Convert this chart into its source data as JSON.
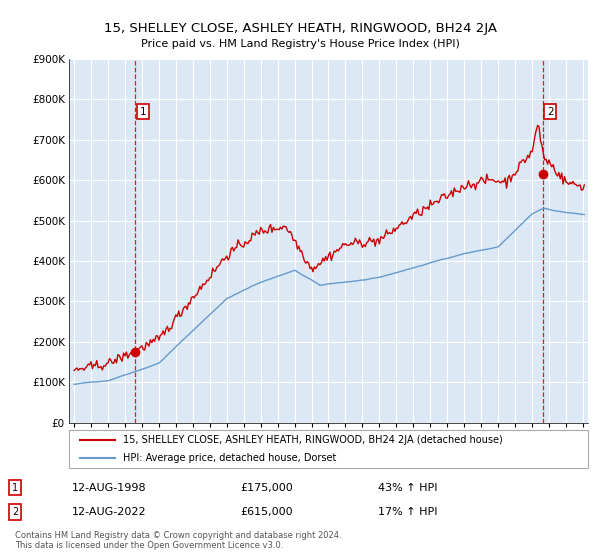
{
  "title": "15, SHELLEY CLOSE, ASHLEY HEATH, RINGWOOD, BH24 2JA",
  "subtitle": "Price paid vs. HM Land Registry's House Price Index (HPI)",
  "legend_line1": "15, SHELLEY CLOSE, ASHLEY HEATH, RINGWOOD, BH24 2JA (detached house)",
  "legend_line2": "HPI: Average price, detached house, Dorset",
  "annotation1_date": "12-AUG-1998",
  "annotation1_price": "£175,000",
  "annotation1_hpi": "43% ↑ HPI",
  "annotation2_date": "12-AUG-2022",
  "annotation2_price": "£615,000",
  "annotation2_hpi": "17% ↑ HPI",
  "footnote": "Contains HM Land Registry data © Crown copyright and database right 2024.\nThis data is licensed under the Open Government Licence v3.0.",
  "red_color": "#cc0000",
  "blue_color": "#6699cc",
  "bg_color": "#dce9f5",
  "grid_color": "#ffffff",
  "ylim": [
    0,
    900000
  ],
  "yticks": [
    0,
    100000,
    200000,
    300000,
    400000,
    500000,
    600000,
    700000,
    800000,
    900000
  ],
  "purchase1_year": 1998.62,
  "purchase1_price": 175000,
  "purchase2_year": 2022.62,
  "purchase2_price": 615000,
  "vline1_year": 1998.62,
  "vline2_year": 2022.62,
  "xmin": 1994.7,
  "xmax": 2025.3
}
